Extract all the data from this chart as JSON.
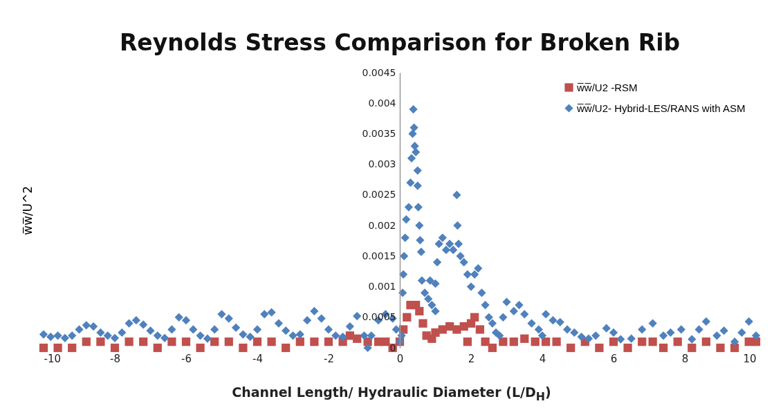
{
  "chart_data": {
    "type": "scatter",
    "title": "Reynolds Stress Comparison for Broken Rib",
    "xlabel": "Channel Length/ Hydraulic Diameter  (L/D$_{H}$)",
    "ylabel": "w̅w̅/U^2",
    "xlim": [
      -10,
      10
    ],
    "xticks": [
      -10,
      -8,
      -6,
      -4,
      -2,
      0,
      2,
      4,
      6,
      8,
      10
    ],
    "ylim": [
      0,
      0.0045
    ],
    "yticks": [
      0,
      0.0005,
      0.001,
      0.0015,
      0.002,
      0.0025,
      0.003,
      0.0035,
      0.004,
      0.0045
    ],
    "grid": false,
    "legend": "top right",
    "series": [
      {
        "name": "w̅w̅/U2 -RSM",
        "color": "#c0504d",
        "marker": "square",
        "x": [
          -10,
          -9.6,
          -9.2,
          -8.8,
          -8.4,
          -8,
          -7.6,
          -7.2,
          -6.8,
          -6.4,
          -6,
          -5.6,
          -5.2,
          -4.8,
          -4.4,
          -4,
          -3.6,
          -3.2,
          -2.8,
          -2.4,
          -2,
          -1.6,
          -1.4,
          -1.2,
          -0.9,
          -0.6,
          -0.4,
          -0.2,
          0,
          0.1,
          0.2,
          0.3,
          0.45,
          0.55,
          0.65,
          0.75,
          0.9,
          1,
          1.2,
          1.4,
          1.6,
          1.8,
          1.9,
          2,
          2.1,
          2.25,
          2.4,
          2.6,
          2.9,
          3.2,
          3.5,
          3.8,
          4.1,
          4.4,
          4.8,
          5.2,
          5.6,
          6,
          6.4,
          6.8,
          7.1,
          7.4,
          7.8,
          8.2,
          8.6,
          9,
          9.4,
          9.8,
          10
        ],
        "values": [
          0,
          0,
          0,
          0.0001,
          0.0001,
          0,
          0.0001,
          0.0001,
          0,
          0.0001,
          0.0001,
          0,
          0.0001,
          0.0001,
          0,
          0.0001,
          0.0001,
          0,
          0.0001,
          0.0001,
          0.0001,
          0.0001,
          0.0002,
          0.00015,
          0.0001,
          0.0001,
          0.0001,
          0,
          0.0001,
          0.0003,
          0.0005,
          0.0007,
          0.0007,
          0.0006,
          0.0004,
          0.0002,
          0.00015,
          0.00025,
          0.0003,
          0.00035,
          0.0003,
          0.00035,
          0.0001,
          0.0004,
          0.0005,
          0.0003,
          0.0001,
          0,
          0.0001,
          0.0001,
          0.00015,
          0.0001,
          0.0001,
          0.0001,
          0,
          0.0001,
          0,
          0.0001,
          0,
          0.0001,
          0.0001,
          0,
          0.0001,
          0,
          0.0001,
          0,
          0,
          0.0001,
          0.0001
        ]
      },
      {
        "name": "w̅w̅/U2- Hybrid-LES/RANS with ASM",
        "color": "#4f81bd",
        "marker": "diamond",
        "x": [
          -10,
          -9.8,
          -9.6,
          -9.4,
          -9.2,
          -9,
          -8.8,
          -8.6,
          -8.4,
          -8.2,
          -8,
          -7.8,
          -7.6,
          -7.4,
          -7.2,
          -7,
          -6.8,
          -6.6,
          -6.4,
          -6.2,
          -6,
          -5.8,
          -5.6,
          -5.4,
          -5.2,
          -5,
          -4.8,
          -4.6,
          -4.4,
          -4.2,
          -4,
          -3.8,
          -3.6,
          -3.4,
          -3.2,
          -3,
          -2.8,
          -2.6,
          -2.4,
          -2.2,
          -2,
          -1.8,
          -1.6,
          -1.4,
          -1.2,
          -1,
          -0.9,
          -0.8,
          -0.6,
          -0.4,
          -0.2,
          -0.1,
          0,
          0.05,
          0.08,
          0.1,
          0.12,
          0.15,
          0.18,
          0.25,
          0.3,
          0.33,
          0.36,
          0.38,
          0.4,
          0.42,
          0.45,
          0.5,
          0.5,
          0.52,
          0.55,
          0.57,
          0.6,
          0.62,
          0.7,
          0.8,
          0.9,
          1,
          0.85,
          1,
          1.05,
          1.1,
          1.2,
          1.3,
          1.4,
          1.5,
          1.6,
          1.62,
          1.65,
          1.7,
          1.8,
          1.9,
          2,
          2.1,
          2.2,
          2.3,
          2.4,
          2.5,
          2.6,
          2.7,
          2.8,
          2.9,
          3,
          3.2,
          3.35,
          3.5,
          3.7,
          3.9,
          4,
          4.1,
          4.3,
          4.5,
          4.7,
          4.9,
          5.1,
          5.3,
          5.5,
          5.8,
          6,
          6.2,
          6.5,
          6.8,
          7.1,
          7.4,
          7.6,
          7.9,
          8.2,
          8.4,
          8.6,
          8.9,
          9.1,
          9.4,
          9.6,
          9.8,
          10
        ],
        "values": [
          0.00022,
          0.00018,
          0.0002,
          0.00016,
          0.0002,
          0.0003,
          0.00037,
          0.00035,
          0.00025,
          0.0002,
          0.00016,
          0.00025,
          0.0004,
          0.00045,
          0.00038,
          0.00028,
          0.0002,
          0.00016,
          0.0003,
          0.0005,
          0.00045,
          0.0003,
          0.0002,
          0.00015,
          0.0003,
          0.00055,
          0.00048,
          0.00033,
          0.00022,
          0.00018,
          0.0003,
          0.00055,
          0.00058,
          0.0004,
          0.00028,
          0.0002,
          0.00022,
          0.00045,
          0.0006,
          0.00048,
          0.0003,
          0.0002,
          0.00018,
          0.00035,
          0.00052,
          0.0002,
          0,
          0.0002,
          0.00045,
          0.00055,
          0.00048,
          0.0003,
          0.0001,
          0.0002,
          0.0009,
          0.0012,
          0.0015,
          0.0018,
          0.0021,
          0.0023,
          0.0027,
          0.0031,
          0.0035,
          0.0039,
          0.0036,
          0.0033,
          0.0032,
          0.0029,
          0.00265,
          0.0023,
          0.002,
          0.00176,
          0.00157,
          0.0011,
          0.0009,
          0.0008,
          0.0007,
          0.0006,
          0.0011,
          0.00105,
          0.0014,
          0.0017,
          0.0018,
          0.0016,
          0.0017,
          0.0016,
          0.0025,
          0.002,
          0.0017,
          0.0015,
          0.0014,
          0.0012,
          0.001,
          0.0012,
          0.0013,
          0.0009,
          0.0007,
          0.0005,
          0.0004,
          0.00025,
          0.0002,
          0.0005,
          0.00075,
          0.0006,
          0.0007,
          0.00055,
          0.0004,
          0.0003,
          0.0002,
          0.00055,
          0.00045,
          0.00042,
          0.0003,
          0.00025,
          0.00018,
          0.00015,
          0.0002,
          0.00032,
          0.00025,
          0.00014,
          0.00015,
          0.0003,
          0.0004,
          0.0002,
          0.00025,
          0.0003,
          0.00014,
          0.0003,
          0.00043,
          0.0002,
          0.00028,
          0.0001,
          0.00025,
          0.00043,
          0.0002
        ]
      }
    ]
  }
}
